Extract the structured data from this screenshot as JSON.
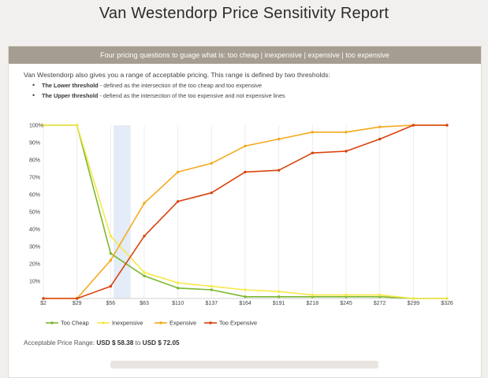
{
  "title": "Van Westendorp Price Sensitivity Report",
  "banner": "Four pricing questions to guage what is: too cheap | inexpensive | expensive | too expensive",
  "intro": "Van Westendorp also gives you a range of acceptable pricing. This range is defined by two thresholds:",
  "bullets": [
    {
      "bold": "The Lower threshold",
      "text": " - defined as the intersection of the too cheap and too expensive"
    },
    {
      "bold": "The Upper threshold",
      "text": " - defiend as the intersection of the too expensive and not expensive lines"
    }
  ],
  "range": {
    "label": "Acceptable Price Range: ",
    "low": "USD $ 58.38",
    "sep": " to ",
    "high": "USD $ 72.05"
  },
  "chart_data": {
    "type": "line",
    "x": [
      2,
      29,
      56,
      83,
      110,
      137,
      164,
      191,
      218,
      245,
      272,
      299,
      326
    ],
    "xticklabels": [
      "$2",
      "$29",
      "$56",
      "$83",
      "$110",
      "$137",
      "$164",
      "$191",
      "$218",
      "$245",
      "$272",
      "$299",
      "$326"
    ],
    "yticklabels": [
      "10%",
      "20%",
      "30%",
      "40%",
      "50%",
      "60%",
      "70%",
      "80%",
      "90%",
      "100%"
    ],
    "ylim": [
      0,
      100
    ],
    "band": [
      58.38,
      72.05
    ],
    "legend_position": "bottom",
    "series": [
      {
        "name": "Too Cheap",
        "color": "#7cb82f",
        "x": [
          2,
          29,
          56,
          83,
          110,
          137,
          164,
          191,
          218,
          245,
          272,
          299,
          326
        ],
        "values": [
          100,
          100,
          26,
          13,
          6,
          5,
          1,
          1,
          1,
          1,
          1,
          0,
          0
        ]
      },
      {
        "name": "Inexpensive",
        "color": "#f7e84a",
        "x": [
          2,
          29,
          56,
          83,
          110,
          137,
          164,
          191,
          218,
          245,
          272,
          299,
          326
        ],
        "values": [
          100,
          100,
          36,
          15,
          9,
          7,
          5,
          4,
          2,
          2,
          2,
          0,
          0
        ]
      },
      {
        "name": "Expensive",
        "color": "#f4a91c",
        "x": [
          2,
          29,
          56,
          83,
          110,
          137,
          164,
          191,
          218,
          245,
          272,
          299,
          326
        ],
        "values": [
          0,
          0,
          22,
          55,
          73,
          78,
          88,
          92,
          96,
          96,
          99,
          100,
          100
        ]
      },
      {
        "name": "Too Expensive",
        "color": "#d9420c",
        "x": [
          2,
          29,
          56,
          83,
          110,
          137,
          164,
          191,
          218,
          245,
          272,
          299,
          326
        ],
        "values": [
          0,
          0,
          7,
          36,
          56,
          61,
          73,
          74,
          84,
          85,
          92,
          100,
          100
        ]
      }
    ]
  }
}
